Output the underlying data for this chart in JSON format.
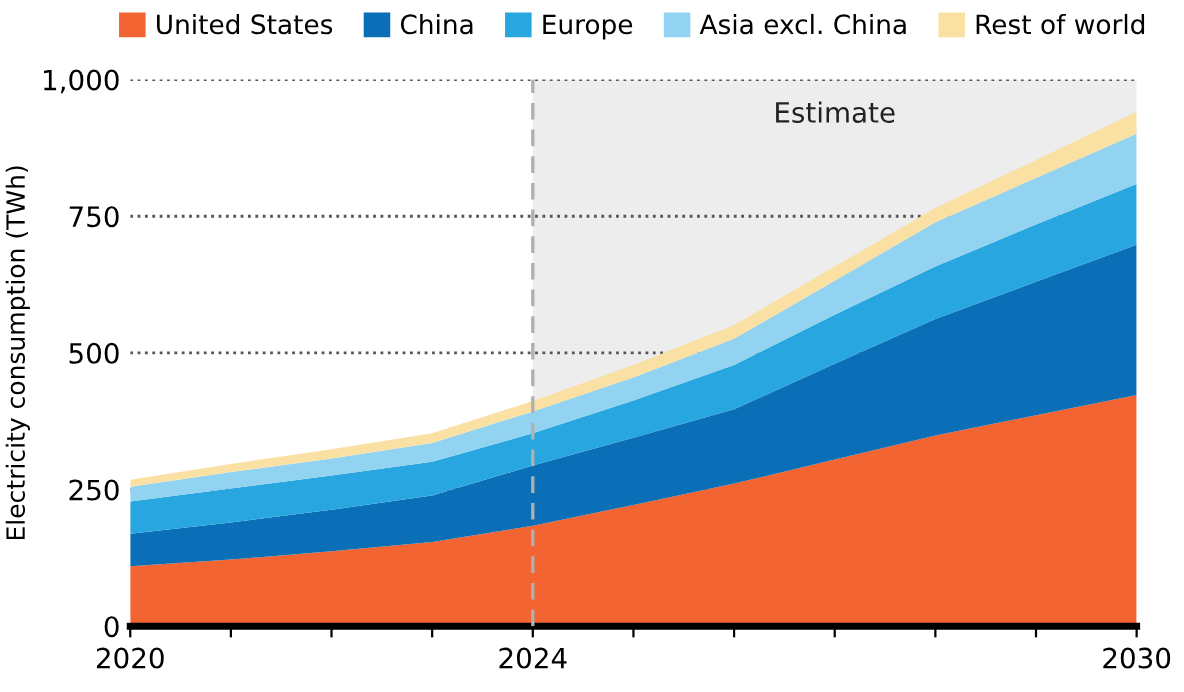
{
  "chart_data": {
    "type": "area",
    "stacked": true,
    "ylabel": "Electricity consumption (TWh)",
    "x": [
      2020,
      2021,
      2022,
      2023,
      2024,
      2025,
      2026,
      2027,
      2028,
      2029,
      2030
    ],
    "series": [
      {
        "name": "United States",
        "color": "#f26532",
        "values": [
          110,
          122,
          137,
          154,
          184,
          222,
          261,
          305,
          349,
          386,
          423
        ]
      },
      {
        "name": "China",
        "color": "#0a6fb7",
        "values": [
          59,
          68,
          76,
          85,
          110,
          123,
          136,
          175,
          213,
          244,
          275
        ]
      },
      {
        "name": "Europe",
        "color": "#27a6df",
        "values": [
          59,
          62,
          63,
          62,
          59,
          68,
          81,
          90,
          96,
          105,
          111
        ]
      },
      {
        "name": "Asia excl. China",
        "color": "#93d3f2",
        "values": [
          27,
          30,
          31,
          34,
          40,
          42,
          48,
          62,
          81,
          85,
          92
        ]
      },
      {
        "name": "Rest of world",
        "color": "#fbe0a3",
        "values": [
          13,
          15,
          17,
          18,
          19,
          23,
          25,
          26,
          26,
          33,
          40
        ]
      }
    ],
    "xlim": [
      2020,
      2030
    ],
    "xticks": [
      2020,
      {
        "value": 2021,
        "label": null
      },
      {
        "value": 2022,
        "label": null
      },
      {
        "value": 2023,
        "label": null
      },
      2024,
      {
        "value": 2025,
        "label": null
      },
      {
        "value": 2026,
        "label": null
      },
      {
        "value": 2027,
        "label": null
      },
      {
        "value": 2028,
        "label": null
      },
      {
        "value": 2029,
        "label": null
      },
      2030
    ],
    "ylim": [
      0,
      1000
    ],
    "yticks": [
      0,
      250,
      500,
      750,
      {
        "value": 1000,
        "label": "1,000"
      }
    ],
    "grid": "y",
    "legend": "top",
    "ref_lines": [
      {
        "axis": "x",
        "value": 2024,
        "color": "#b0b0b0",
        "line_style": "dashed"
      }
    ],
    "bands": [
      {
        "axis": "x",
        "from": 2024,
        "to": 2030,
        "label": "Estimate",
        "color": "#ededed"
      }
    ]
  }
}
